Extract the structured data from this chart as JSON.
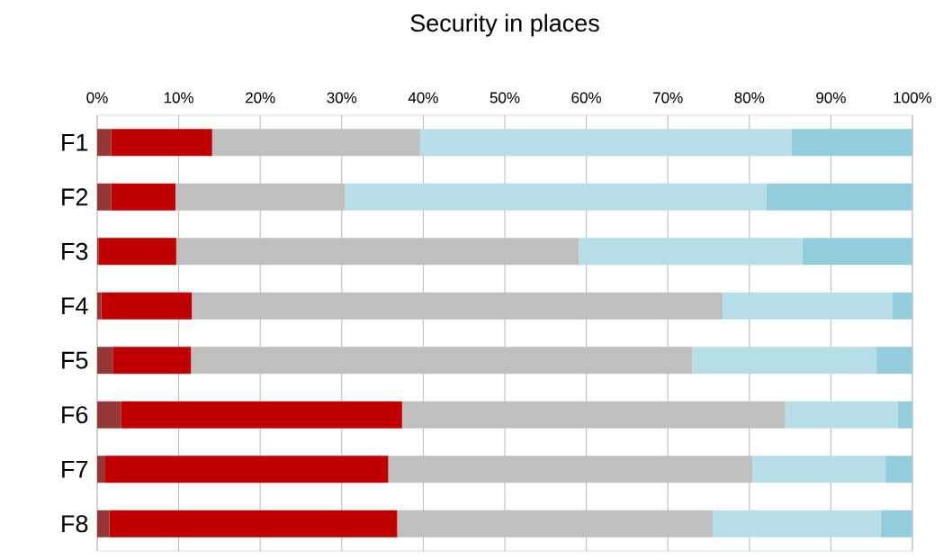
{
  "chart_data": {
    "type": "bar",
    "orientation": "horizontal",
    "stacked": true,
    "title": "Security in places",
    "categories": [
      "F1",
      "F2",
      "F3",
      "F4",
      "F5",
      "F6",
      "F7",
      "F8"
    ],
    "series": [
      {
        "color": "#953735",
        "values": [
          1.7,
          1.7,
          0.2,
          0.5,
          1.9,
          2.9,
          0.9,
          1.5
        ]
      },
      {
        "color": "#c00000",
        "values": [
          12.4,
          7.9,
          9.5,
          11.1,
          9.6,
          34.5,
          34.8,
          35.3
        ]
      },
      {
        "color": "#bfbfbf",
        "values": [
          25.5,
          20.8,
          49.4,
          65.1,
          61.5,
          47.0,
          44.7,
          38.7
        ]
      },
      {
        "color": "#b7dee8",
        "values": [
          45.6,
          51.7,
          27.4,
          20.8,
          22.6,
          13.8,
          16.3,
          20.6
        ]
      },
      {
        "color": "#93cddd",
        "values": [
          14.8,
          17.9,
          13.5,
          2.5,
          4.4,
          1.8,
          3.3,
          3.9
        ]
      }
    ],
    "xlim": [
      0,
      100
    ],
    "xticks": [
      {
        "value": 0,
        "label": "0%"
      },
      {
        "value": 10,
        "label": "10%"
      },
      {
        "value": 20,
        "label": "20%"
      },
      {
        "value": 30,
        "label": "30%"
      },
      {
        "value": 40,
        "label": "40%"
      },
      {
        "value": 50,
        "label": "50%"
      },
      {
        "value": 60,
        "label": "60%"
      },
      {
        "value": 70,
        "label": "70%"
      },
      {
        "value": 80,
        "label": "80%"
      },
      {
        "value": 90,
        "label": "90%"
      },
      {
        "value": 100,
        "label": "100%"
      }
    ],
    "grid": "x"
  }
}
